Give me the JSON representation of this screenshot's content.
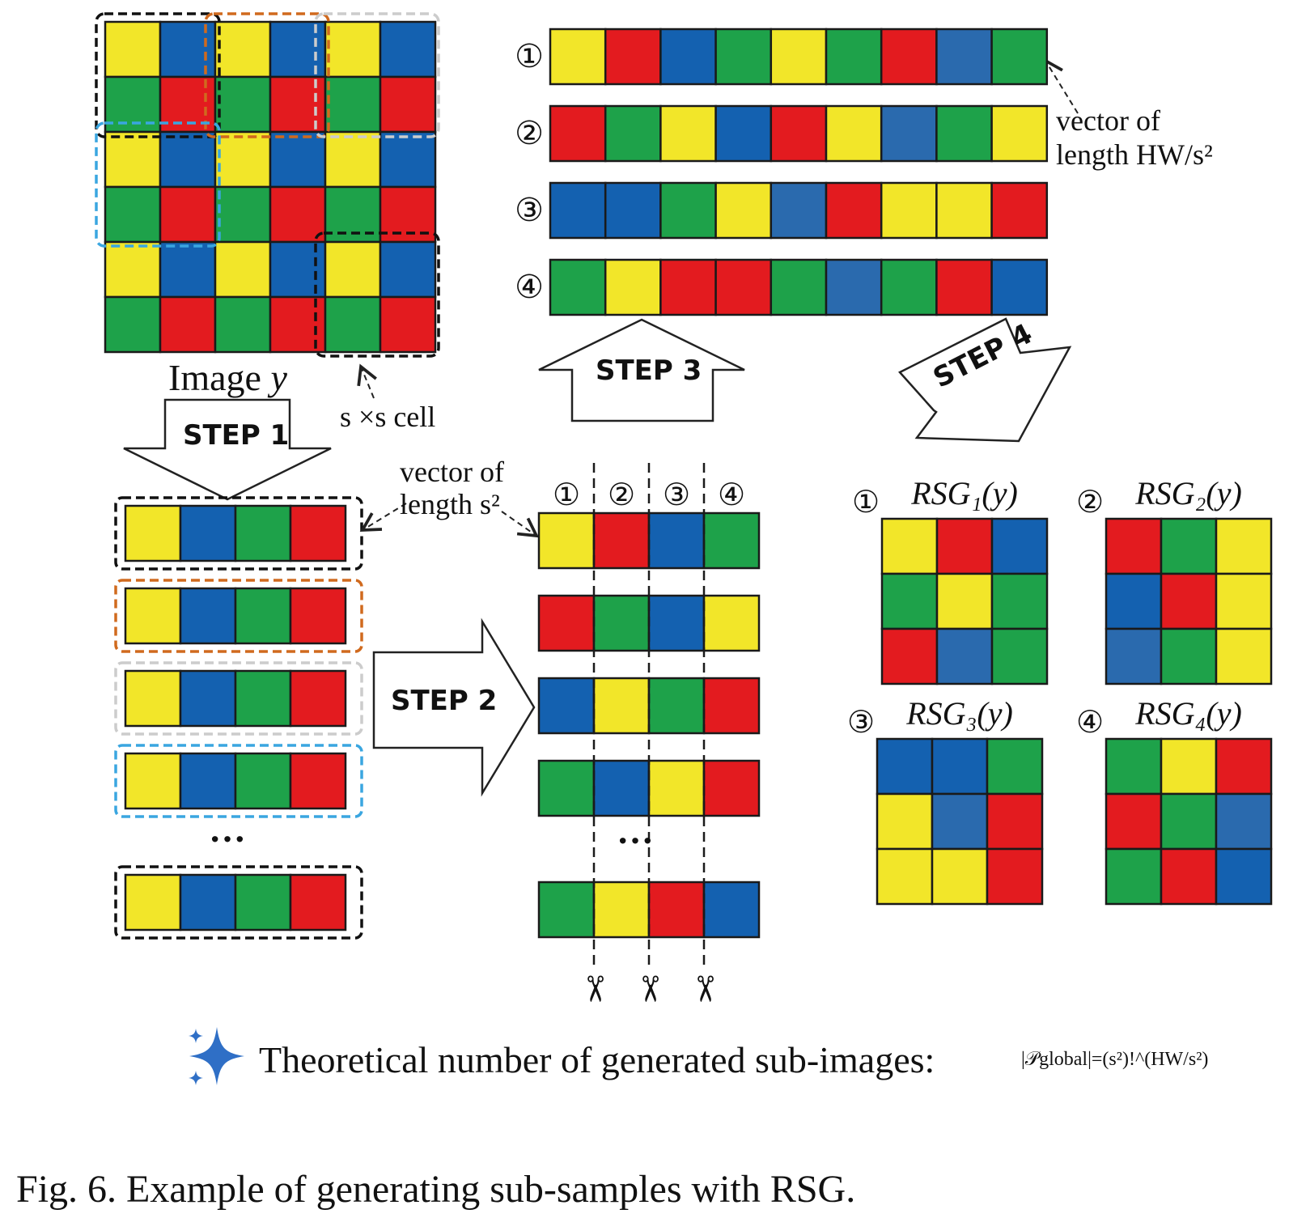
{
  "colors": {
    "Y": "#f2e629",
    "B": "#1461b0",
    "G": "#1ea24a",
    "R": "#e31b1f",
    "S": "#2a6aae"
  },
  "image": {
    "label_prefix": "Image",
    "label_var": "y",
    "grid": [
      [
        "Y",
        "B",
        "Y",
        "B",
        "Y",
        "B"
      ],
      [
        "G",
        "R",
        "G",
        "R",
        "G",
        "R"
      ],
      [
        "Y",
        "B",
        "Y",
        "B",
        "Y",
        "B"
      ],
      [
        "G",
        "R",
        "G",
        "R",
        "G",
        "R"
      ],
      [
        "Y",
        "B",
        "Y",
        "B",
        "Y",
        "B"
      ],
      [
        "G",
        "R",
        "G",
        "R",
        "G",
        "R"
      ]
    ],
    "cell_label": "s ×s cell",
    "highlight_colors": [
      "#111111",
      "#d06a1e",
      "#cccccc",
      "#3aa6e0",
      "#111111"
    ]
  },
  "steps": {
    "step1": "STEP 1",
    "step2": "STEP 2",
    "step3": "STEP 3",
    "step4": "STEP 4"
  },
  "step1_vectors": {
    "cells": [
      "Y",
      "B",
      "G",
      "R"
    ],
    "box_colors": [
      "#111111",
      "#d06a1e",
      "#cccccc",
      "#3aa6e0",
      "#111111"
    ],
    "ellipsis": "···",
    "annotation_line1": "vector of",
    "annotation_line2": "length s²"
  },
  "step2_matrix": {
    "column_labels": [
      "①",
      "②",
      "③",
      "④"
    ],
    "rows": [
      [
        "Y",
        "R",
        "B",
        "G"
      ],
      [
        "R",
        "G",
        "B",
        "Y"
      ],
      [
        "B",
        "Y",
        "G",
        "R"
      ],
      [
        "G",
        "B",
        "Y",
        "R"
      ],
      [
        "G",
        "Y",
        "R",
        "B"
      ]
    ],
    "ellipsis": "···",
    "scissors": "✂"
  },
  "step3_vectors": {
    "labels": [
      "①",
      "②",
      "③",
      "④"
    ],
    "rows": [
      [
        "Y",
        "R",
        "B",
        "G",
        "Y",
        "G",
        "R",
        "S",
        "G"
      ],
      [
        "R",
        "G",
        "Y",
        "B",
        "R",
        "Y",
        "S",
        "G",
        "Y"
      ],
      [
        "B",
        "B",
        "G",
        "Y",
        "S",
        "R",
        "Y",
        "Y",
        "R"
      ],
      [
        "G",
        "Y",
        "R",
        "R",
        "G",
        "S",
        "G",
        "R",
        "B"
      ]
    ],
    "annotation_line1": "vector of",
    "annotation_line2": "length HW/s²"
  },
  "rsg": [
    {
      "label": "①",
      "title": "RSG₁(y)",
      "grid": [
        [
          "Y",
          "R",
          "B"
        ],
        [
          "G",
          "Y",
          "G"
        ],
        [
          "R",
          "S",
          "G"
        ]
      ]
    },
    {
      "label": "②",
      "title": "RSG₂(y)",
      "grid": [
        [
          "R",
          "G",
          "Y"
        ],
        [
          "B",
          "R",
          "Y"
        ],
        [
          "S",
          "G",
          "Y"
        ]
      ]
    },
    {
      "label": "③",
      "title": "RSG₃(y)",
      "grid": [
        [
          "B",
          "B",
          "G"
        ],
        [
          "Y",
          "S",
          "R"
        ],
        [
          "Y",
          "Y",
          "R"
        ]
      ]
    },
    {
      "label": "④",
      "title": "RSG₄(y)",
      "grid": [
        [
          "G",
          "Y",
          "R"
        ],
        [
          "R",
          "G",
          "S"
        ],
        [
          "G",
          "R",
          "B"
        ]
      ]
    }
  ],
  "formula": {
    "icon": "sparkle-icon",
    "text": "Theoretical number of generated sub-images:",
    "math": "|𝒫global|=(s²)!^(HW/s²)"
  },
  "caption": "Fig. 6.  Example of generating sub-samples with RSG."
}
